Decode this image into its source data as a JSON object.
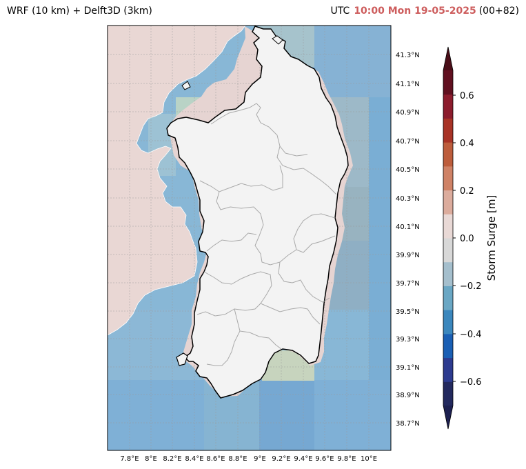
{
  "header": {
    "left_title": "WRF (10 km) + Delft3D (3km)",
    "utc_label": "UTC",
    "datetime": "10:00 Mon 19-05-2025",
    "forecast_step": "(00+82)"
  },
  "map": {
    "lat_labels": [
      "41.3°N",
      "41.1°N",
      "40.9°N",
      "40.7°N",
      "40.5°N",
      "40.3°N",
      "40.1°N",
      "39.9°N",
      "39.7°N",
      "39.5°N",
      "39.3°N",
      "39.1°N",
      "38.9°N",
      "38.7°N"
    ],
    "lon_labels": [
      "7.8°E",
      "8°E",
      "8.2°E",
      "8.4°E",
      "8.6°E",
      "8.8°E",
      "9°E",
      "9.2°E",
      "9.4°E",
      "9.6°E",
      "9.8°E",
      "10°E"
    ],
    "colors": {
      "land": "#f3f3f3",
      "coast": "#000000",
      "regions": "#a9a9a9",
      "grid": "#9a9a9a"
    }
  },
  "colorbar": {
    "title": "Storm Surge [m]",
    "tick_labels": [
      "0.6",
      "0.4",
      "0.2",
      "0.0",
      "−0.2",
      "−0.4",
      "−0.6"
    ],
    "colors": [
      "#23295e",
      "#2d3b8f",
      "#1a5fb4",
      "#3b87bd",
      "#6aa7c4",
      "#a5bfcd",
      "#d8d8d8",
      "#e9d9d6",
      "#dcac9d",
      "#cf8266",
      "#bd5d3c",
      "#a83326",
      "#8c1c2d",
      "#611020"
    ],
    "under_color": "#1d2050",
    "over_color": "#4a0e18"
  }
}
